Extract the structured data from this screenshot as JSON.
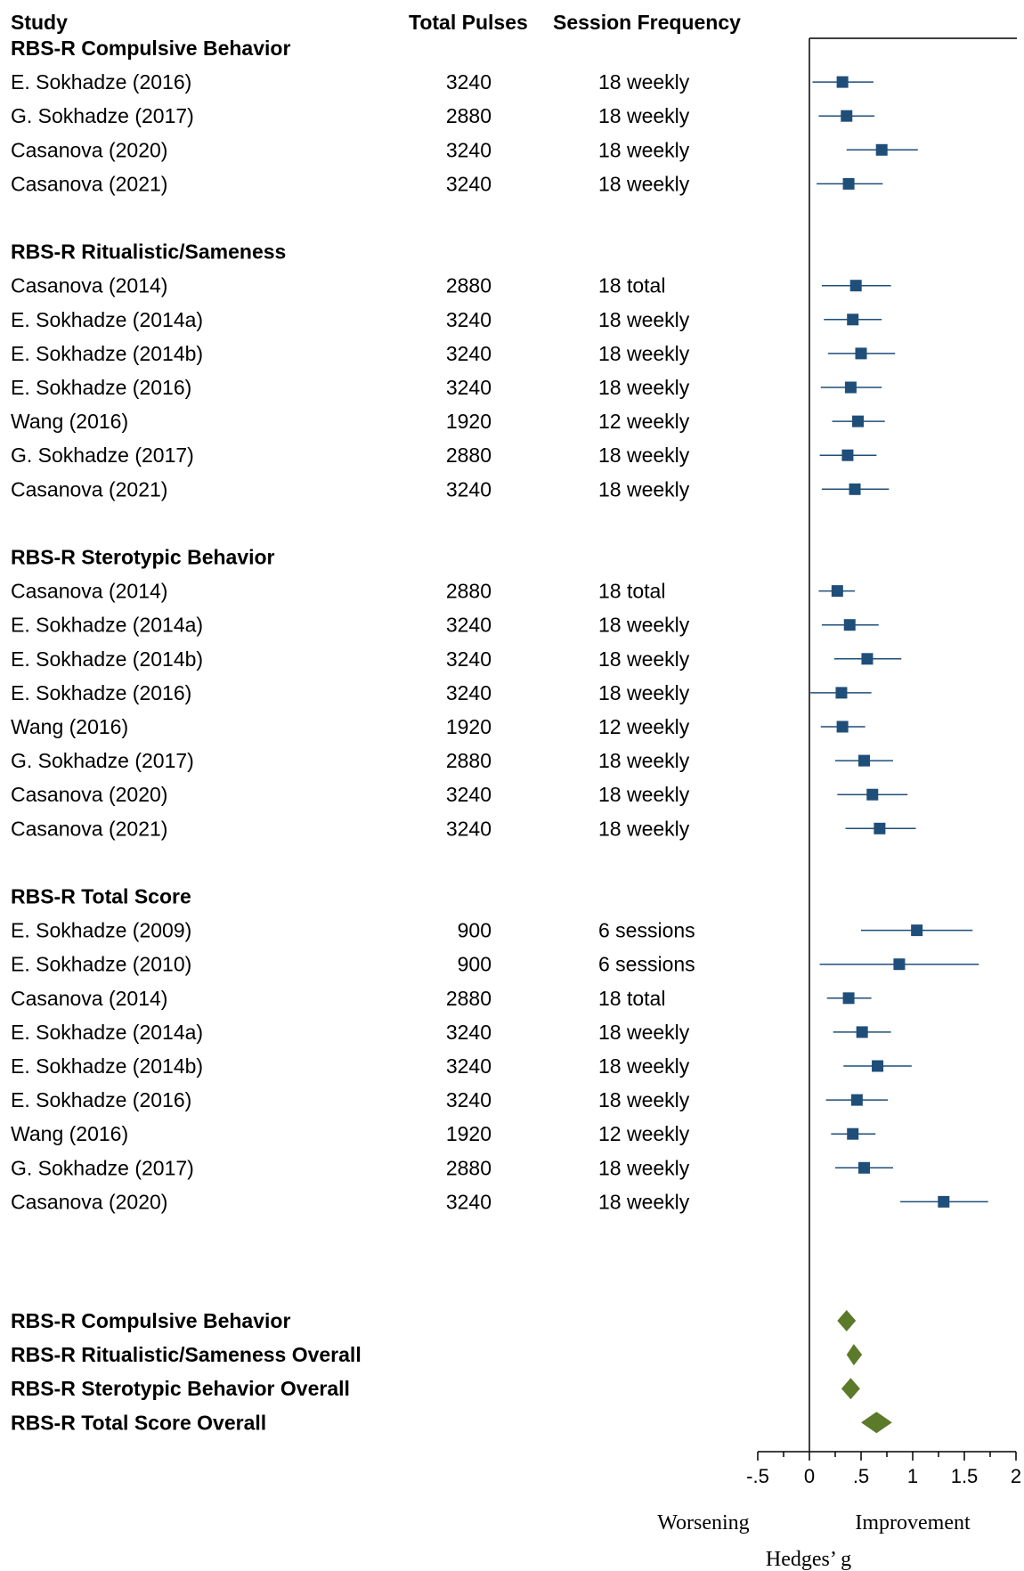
{
  "header": {
    "study": "Study",
    "total_pulses": "Total Pulses",
    "session_frequency": "Session Frequency"
  },
  "chart_data": {
    "type": "forest",
    "xlabel": "Hedges’ g",
    "direction_left": "Worsening",
    "direction_right": "Improvement",
    "xlim": [
      -0.5,
      2
    ],
    "ticks": [
      -0.5,
      0,
      0.5,
      1,
      1.5,
      2
    ],
    "tick_labels": [
      "-.5",
      "0",
      ".5",
      "1",
      "1.5",
      "2"
    ],
    "groups": [
      {
        "title": "RBS-R Compulsive Behavior",
        "studies": [
          {
            "study": "E. Sokhadze (2016)",
            "pulses": "3240",
            "frequency": "18 weekly",
            "g": 0.32,
            "lo": 0.03,
            "hi": 0.62
          },
          {
            "study": "G. Sokhadze (2017)",
            "pulses": "2880",
            "frequency": "18 weekly",
            "g": 0.36,
            "lo": 0.09,
            "hi": 0.63
          },
          {
            "study": "Casanova (2020)",
            "pulses": "3240",
            "frequency": "18 weekly",
            "g": 0.7,
            "lo": 0.36,
            "hi": 1.05
          },
          {
            "study": "Casanova (2021)",
            "pulses": "3240",
            "frequency": "18 weekly",
            "g": 0.38,
            "lo": 0.07,
            "hi": 0.71
          }
        ]
      },
      {
        "title": "RBS-R Ritualistic/Sameness",
        "studies": [
          {
            "study": "Casanova (2014)",
            "pulses": "2880",
            "frequency": "18 total",
            "g": 0.45,
            "lo": 0.12,
            "hi": 0.79
          },
          {
            "study": "E. Sokhadze (2014a)",
            "pulses": "3240",
            "frequency": "18 weekly",
            "g": 0.42,
            "lo": 0.14,
            "hi": 0.7
          },
          {
            "study": "E. Sokhadze (2014b)",
            "pulses": "3240",
            "frequency": "18 weekly",
            "g": 0.5,
            "lo": 0.18,
            "hi": 0.83
          },
          {
            "study": "E. Sokhadze (2016)",
            "pulses": "3240",
            "frequency": "18 weekly",
            "g": 0.4,
            "lo": 0.11,
            "hi": 0.7
          },
          {
            "study": "Wang (2016)",
            "pulses": "1920",
            "frequency": "12 weekly",
            "g": 0.47,
            "lo": 0.22,
            "hi": 0.73
          },
          {
            "study": "G. Sokhadze (2017)",
            "pulses": "2880",
            "frequency": "18 weekly",
            "g": 0.37,
            "lo": 0.1,
            "hi": 0.65
          },
          {
            "study": "Casanova (2021)",
            "pulses": "3240",
            "frequency": "18 weekly",
            "g": 0.44,
            "lo": 0.12,
            "hi": 0.77
          }
        ]
      },
      {
        "title": "RBS-R Sterotypic Behavior",
        "studies": [
          {
            "study": "Casanova (2014)",
            "pulses": "2880",
            "frequency": "18 total",
            "g": 0.27,
            "lo": 0.09,
            "hi": 0.44
          },
          {
            "study": "E. Sokhadze (2014a)",
            "pulses": "3240",
            "frequency": "18 weekly",
            "g": 0.39,
            "lo": 0.12,
            "hi": 0.67
          },
          {
            "study": "E. Sokhadze (2014b)",
            "pulses": "3240",
            "frequency": "18 weekly",
            "g": 0.56,
            "lo": 0.24,
            "hi": 0.89
          },
          {
            "study": "E. Sokhadze (2016)",
            "pulses": "3240",
            "frequency": "18 weekly",
            "g": 0.31,
            "lo": 0.01,
            "hi": 0.6
          },
          {
            "study": "Wang (2016)",
            "pulses": "1920",
            "frequency": "12 weekly",
            "g": 0.32,
            "lo": 0.11,
            "hi": 0.54
          },
          {
            "study": "G. Sokhadze (2017)",
            "pulses": "2880",
            "frequency": "18 weekly",
            "g": 0.53,
            "lo": 0.25,
            "hi": 0.81
          },
          {
            "study": "Casanova (2020)",
            "pulses": "3240",
            "frequency": "18 weekly",
            "g": 0.61,
            "lo": 0.27,
            "hi": 0.95
          },
          {
            "study": "Casanova (2021)",
            "pulses": "3240",
            "frequency": "18 weekly",
            "g": 0.68,
            "lo": 0.35,
            "hi": 1.03
          }
        ]
      },
      {
        "title": "RBS-R Total Score",
        "studies": [
          {
            "study": "E. Sokhadze (2009)",
            "pulses": "900",
            "frequency": "6 sessions",
            "g": 1.04,
            "lo": 0.5,
            "hi": 1.58
          },
          {
            "study": "E. Sokhadze (2010)",
            "pulses": "900",
            "frequency": "6 sessions",
            "g": 0.87,
            "lo": 0.1,
            "hi": 1.64
          },
          {
            "study": "Casanova (2014)",
            "pulses": "2880",
            "frequency": "18 total",
            "g": 0.38,
            "lo": 0.17,
            "hi": 0.6
          },
          {
            "study": "E. Sokhadze (2014a)",
            "pulses": "3240",
            "frequency": "18 weekly",
            "g": 0.51,
            "lo": 0.23,
            "hi": 0.79
          },
          {
            "study": "E. Sokhadze (2014b)",
            "pulses": "3240",
            "frequency": "18 weekly",
            "g": 0.66,
            "lo": 0.33,
            "hi": 0.99
          },
          {
            "study": "E. Sokhadze (2016)",
            "pulses": "3240",
            "frequency": "18 weekly",
            "g": 0.46,
            "lo": 0.16,
            "hi": 0.76
          },
          {
            "study": "Wang (2016)",
            "pulses": "1920",
            "frequency": "12 weekly",
            "g": 0.42,
            "lo": 0.21,
            "hi": 0.64
          },
          {
            "study": "G. Sokhadze (2017)",
            "pulses": "2880",
            "frequency": "18 weekly",
            "g": 0.53,
            "lo": 0.25,
            "hi": 0.81
          },
          {
            "study": "Casanova (2020)",
            "pulses": "3240",
            "frequency": "18 weekly",
            "g": 1.3,
            "lo": 0.88,
            "hi": 1.73
          }
        ]
      }
    ],
    "overall": [
      {
        "label": "RBS-R Compulsive Behavior",
        "g": 0.36,
        "lo": 0.27,
        "hi": 0.45
      },
      {
        "label": "RBS-R Ritualistic/Sameness Overall",
        "g": 0.43,
        "lo": 0.36,
        "hi": 0.51
      },
      {
        "label": "RBS-R Sterotypic Behavior Overall",
        "g": 0.4,
        "lo": 0.31,
        "hi": 0.49
      },
      {
        "label": "RBS-R Total Score Overall",
        "g": 0.65,
        "lo": 0.5,
        "hi": 0.8
      }
    ]
  },
  "colors": {
    "marker": "#1f4e79",
    "diamond": "#5b7a2a",
    "axis": "#000000"
  }
}
